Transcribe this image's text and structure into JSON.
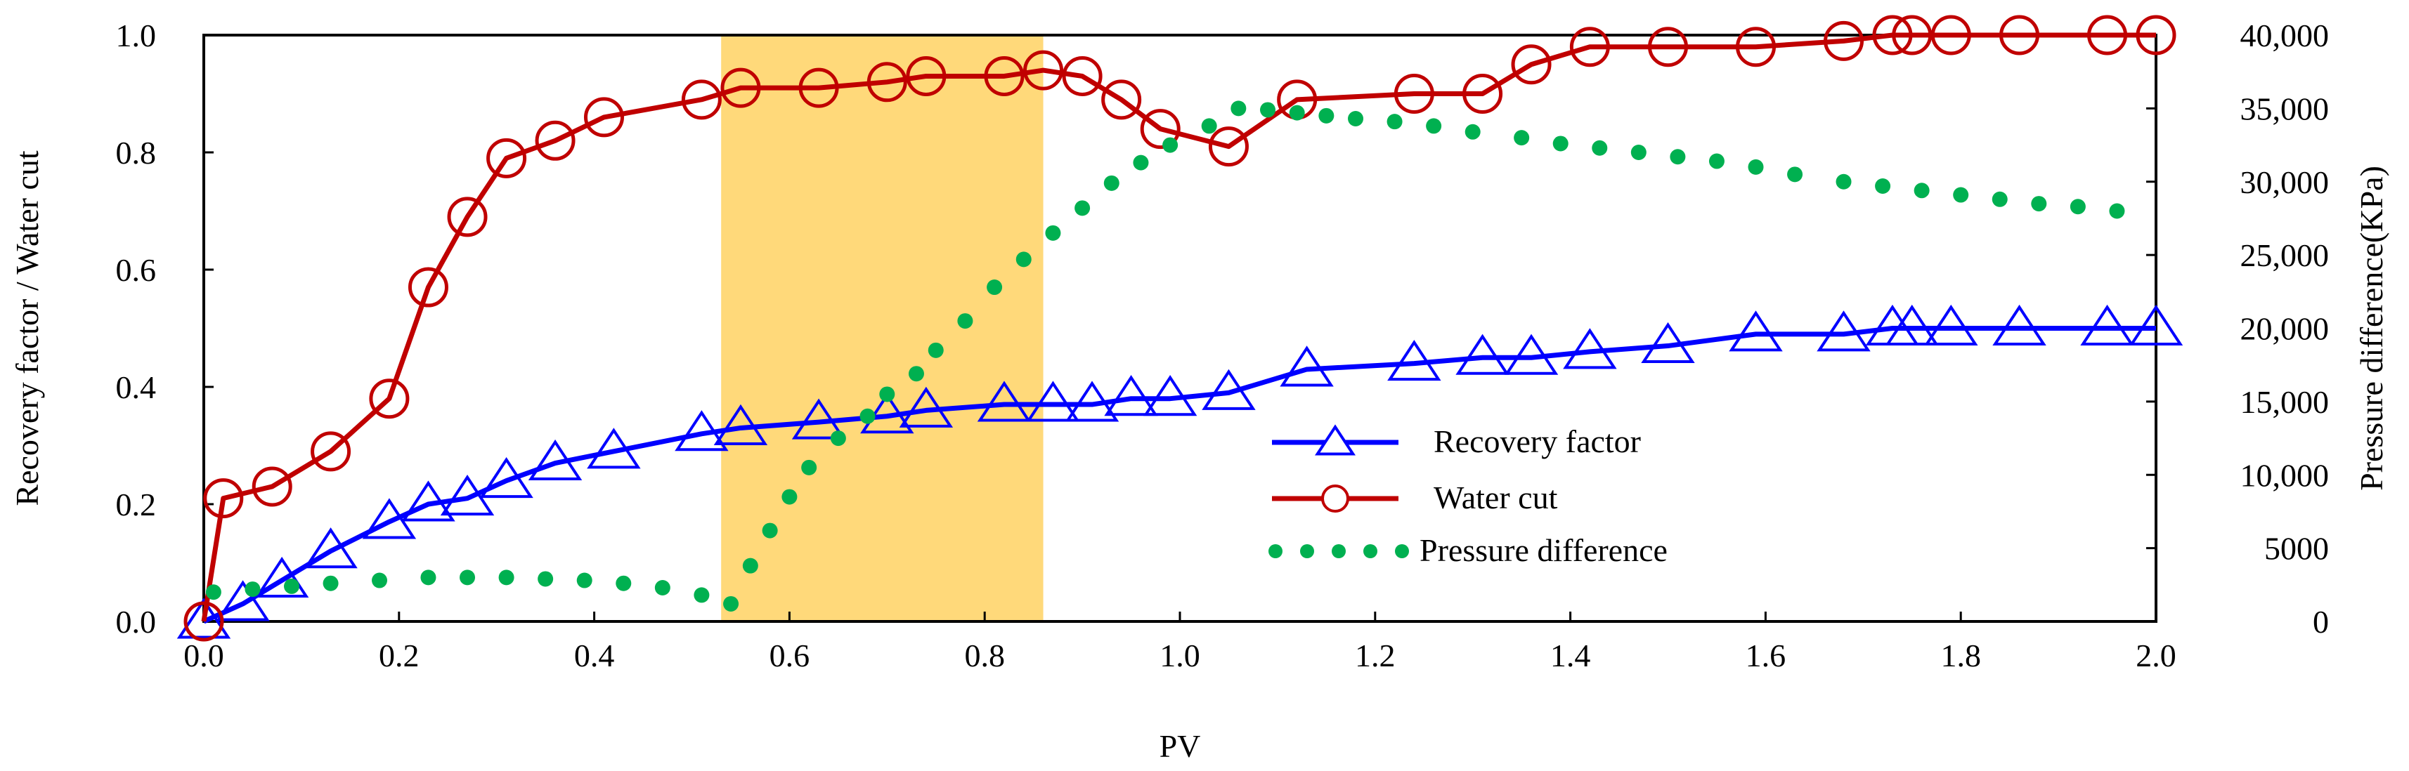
{
  "chart_data": {
    "type": "line",
    "title": "",
    "xlabel": "PV",
    "ylabel": "Recovery factor / Water cut",
    "y2label": "Pressure difference(KPa)",
    "xlim": [
      0.0,
      2.0
    ],
    "ylim": [
      0.0,
      1.0
    ],
    "y2lim": [
      0,
      40000
    ],
    "grid": false,
    "legend_position": "center-right",
    "highlight_x_range": [
      0.53,
      0.86
    ],
    "highlight_color": "#FFD97A",
    "x_ticks": [
      "0.0",
      "0.2",
      "0.4",
      "0.6",
      "0.8",
      "1.0",
      "1.2",
      "1.4",
      "1.6",
      "1.8",
      "2.0"
    ],
    "y_ticks": [
      "0.0",
      "0.2",
      "0.4",
      "0.6",
      "0.8",
      "1.0"
    ],
    "y2_ticks": [
      "0",
      "5000",
      "10,000",
      "15,000",
      "20,000",
      "25,000",
      "30,000",
      "35,000",
      "40,000"
    ],
    "series": [
      {
        "name": "Recovery factor",
        "axis": "left",
        "color": "#0000FF",
        "marker": "triangle",
        "line_style": "solid",
        "x": [
          0.0,
          0.04,
          0.08,
          0.13,
          0.19,
          0.23,
          0.27,
          0.31,
          0.36,
          0.42,
          0.51,
          0.55,
          0.63,
          0.7,
          0.74,
          0.82,
          0.87,
          0.91,
          0.95,
          0.99,
          1.05,
          1.13,
          1.24,
          1.31,
          1.36,
          1.42,
          1.5,
          1.59,
          1.68,
          1.73,
          1.75,
          1.79,
          1.86,
          1.95,
          2.0
        ],
        "values": [
          0.0,
          0.03,
          0.07,
          0.12,
          0.17,
          0.2,
          0.21,
          0.24,
          0.27,
          0.29,
          0.32,
          0.33,
          0.34,
          0.35,
          0.36,
          0.37,
          0.37,
          0.37,
          0.38,
          0.38,
          0.39,
          0.43,
          0.44,
          0.45,
          0.45,
          0.46,
          0.47,
          0.49,
          0.49,
          0.5,
          0.5,
          0.5,
          0.5,
          0.5,
          0.5
        ]
      },
      {
        "name": "Water cut",
        "axis": "left",
        "color": "#C00000",
        "marker": "circle",
        "line_style": "solid",
        "x": [
          0.0,
          0.02,
          0.07,
          0.13,
          0.19,
          0.23,
          0.27,
          0.31,
          0.36,
          0.41,
          0.51,
          0.55,
          0.63,
          0.7,
          0.74,
          0.82,
          0.86,
          0.9,
          0.94,
          0.98,
          1.05,
          1.12,
          1.24,
          1.31,
          1.36,
          1.42,
          1.5,
          1.59,
          1.68,
          1.73,
          1.75,
          1.79,
          1.86,
          1.95,
          2.0
        ],
        "values": [
          0.0,
          0.21,
          0.23,
          0.29,
          0.38,
          0.57,
          0.69,
          0.79,
          0.82,
          0.86,
          0.89,
          0.91,
          0.91,
          0.92,
          0.93,
          0.93,
          0.94,
          0.93,
          0.89,
          0.84,
          0.81,
          0.89,
          0.9,
          0.9,
          0.95,
          0.98,
          0.98,
          0.98,
          0.99,
          1.0,
          1.0,
          1.0,
          1.0,
          1.0,
          1.0
        ]
      },
      {
        "name": "Pressure difference",
        "axis": "right",
        "color": "#00B050",
        "marker": "dot",
        "line_style": "dotted",
        "x": [
          0.01,
          0.05,
          0.09,
          0.13,
          0.18,
          0.23,
          0.27,
          0.31,
          0.35,
          0.39,
          0.43,
          0.47,
          0.51,
          0.54,
          0.56,
          0.58,
          0.6,
          0.62,
          0.65,
          0.68,
          0.7,
          0.73,
          0.75,
          0.78,
          0.81,
          0.84,
          0.87,
          0.9,
          0.93,
          0.96,
          0.99,
          1.03,
          1.06,
          1.09,
          1.12,
          1.15,
          1.18,
          1.22,
          1.26,
          1.3,
          1.35,
          1.39,
          1.43,
          1.47,
          1.51,
          1.55,
          1.59,
          1.63,
          1.68,
          1.72,
          1.76,
          1.8,
          1.84,
          1.88,
          1.92,
          1.96
        ],
        "values": [
          2000,
          2200,
          2400,
          2600,
          2800,
          3000,
          3000,
          3000,
          2900,
          2800,
          2600,
          2300,
          1800,
          1200,
          3800,
          6200,
          8500,
          10500,
          12500,
          14000,
          15500,
          16900,
          18500,
          20500,
          22800,
          24700,
          26500,
          28200,
          29900,
          31300,
          32500,
          33800,
          35000,
          34900,
          34700,
          34500,
          34300,
          34100,
          33800,
          33400,
          33000,
          32600,
          32300,
          32000,
          31700,
          31400,
          31000,
          30500,
          30000,
          29700,
          29400,
          29100,
          28800,
          28500,
          28300,
          28000
        ]
      }
    ]
  }
}
